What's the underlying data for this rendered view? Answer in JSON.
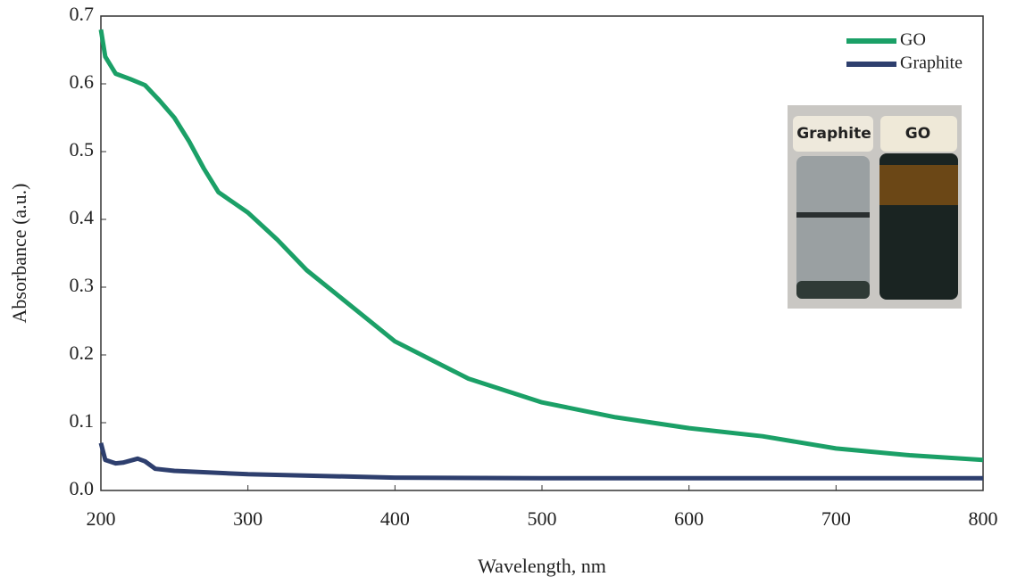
{
  "chart_data": {
    "type": "line",
    "xlabel": "Wavelength, nm",
    "ylabel": "Absorbance (a.u.)",
    "xlim": [
      200,
      800
    ],
    "xticks": [
      200,
      300,
      400,
      500,
      600,
      700,
      800
    ],
    "ylim": [
      0,
      0.7
    ],
    "yticks": [
      {
        "value": 0,
        "label": "0.0"
      },
      0.1,
      0.2,
      0.3,
      0.4,
      0.5,
      0.6,
      0.7
    ],
    "legend": "top-right",
    "annotations": [
      "Graphite",
      "GO"
    ],
    "series": [
      {
        "name": "GO",
        "color": "#1ba067",
        "x": [
          200,
          203,
          210,
          220,
          230,
          240,
          250,
          260,
          270,
          280,
          290,
          300,
          320,
          340,
          360,
          380,
          400,
          450,
          500,
          550,
          600,
          650,
          700,
          750,
          800
        ],
        "values": [
          0.68,
          0.64,
          0.615,
          0.607,
          0.598,
          0.575,
          0.55,
          0.515,
          0.475,
          0.44,
          0.425,
          0.41,
          0.37,
          0.325,
          0.29,
          0.255,
          0.22,
          0.165,
          0.13,
          0.108,
          0.092,
          0.08,
          0.062,
          0.052,
          0.045
        ]
      },
      {
        "name": "Graphite",
        "color": "#2e3f6e",
        "x": [
          200,
          203,
          210,
          215,
          225,
          230,
          237,
          250,
          300,
          400,
          500,
          600,
          800
        ],
        "values": [
          0.07,
          0.045,
          0.04,
          0.041,
          0.047,
          0.043,
          0.032,
          0.029,
          0.024,
          0.019,
          0.018,
          0.018,
          0.018
        ]
      }
    ]
  }
}
